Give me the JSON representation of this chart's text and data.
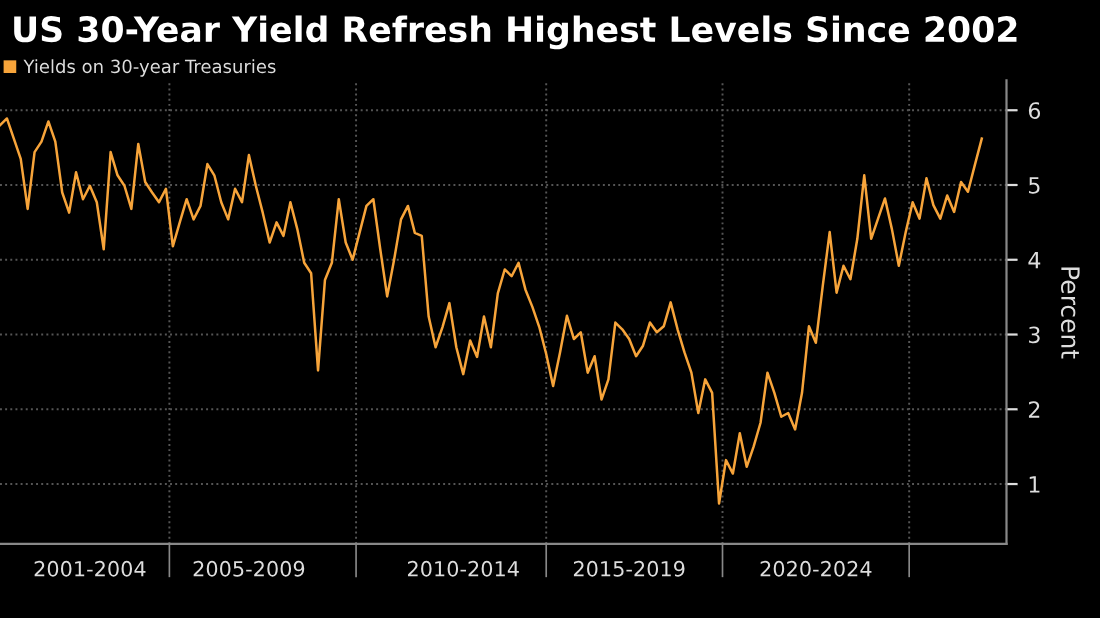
{
  "chart_data": {
    "type": "line",
    "title": "US 30-Year Yield Refresh Highest Levels Since 2002",
    "ylabel": "Percent",
    "categories": [
      null,
      null,
      null,
      null,
      null,
      null,
      null,
      null,
      null,
      null,
      null,
      null,
      null,
      "2001-2004",
      null,
      null,
      null,
      null,
      null,
      null,
      null,
      null,
      null,
      null,
      null,
      null,
      null,
      null,
      null,
      null,
      null,
      null,
      null,
      null,
      null,
      null,
      "2005-2009",
      null,
      null,
      null,
      null,
      null,
      null,
      null,
      null,
      null,
      null,
      null,
      null,
      null,
      null,
      null,
      null,
      null,
      null,
      null,
      null,
      null,
      null,
      null,
      null,
      null,
      null,
      null,
      null,
      null,
      null,
      "2010-2014",
      null,
      null,
      null,
      null,
      null,
      null,
      null,
      null,
      null,
      null,
      null,
      null,
      null,
      null,
      null,
      null,
      null,
      null,
      null,
      null,
      null,
      null,
      null,
      "2015-2019",
      null,
      null,
      null,
      null,
      null,
      null,
      null,
      null,
      null,
      null,
      null,
      null,
      null,
      null,
      null,
      null,
      null,
      null,
      null,
      null,
      null,
      null,
      null,
      null,
      null,
      null,
      "2020-2024",
      null,
      null,
      null,
      null,
      null,
      null,
      null,
      null,
      null,
      null,
      null,
      null,
      null,
      null,
      null,
      null,
      null,
      null,
      null,
      null,
      null,
      null,
      null,
      null
    ],
    "series": [
      {
        "name": "Yields on 30-year Treasuries",
        "color": "#f7a43a",
        "values": [
          5.8,
          5.89,
          5.62,
          5.35,
          4.68,
          5.44,
          5.58,
          5.85,
          5.58,
          4.9,
          4.63,
          5.17,
          4.81,
          4.99,
          4.77,
          4.14,
          5.44,
          5.13,
          4.99,
          4.68,
          5.55,
          5.04,
          4.9,
          4.77,
          4.95,
          4.18,
          4.5,
          4.81,
          4.54,
          4.72,
          5.28,
          5.13,
          4.77,
          4.54,
          4.95,
          4.77,
          5.4,
          4.99,
          4.63,
          4.23,
          4.5,
          4.32,
          4.77,
          4.41,
          3.96,
          3.82,
          2.52,
          3.73,
          3.96,
          4.81,
          4.23,
          4.0,
          4.36,
          4.72,
          4.81,
          4.14,
          3.51,
          4.0,
          4.54,
          4.72,
          4.36,
          4.32,
          3.24,
          2.83,
          3.1,
          3.42,
          2.83,
          2.47,
          2.92,
          2.7,
          3.24,
          2.83,
          3.55,
          3.87,
          3.78,
          3.96,
          3.6,
          3.37,
          3.1,
          2.74,
          2.31,
          2.76,
          3.25,
          2.94,
          3.03,
          2.49,
          2.71,
          2.13,
          2.4,
          3.16,
          3.07,
          2.94,
          2.71,
          2.85,
          3.16,
          3.03,
          3.11,
          3.43,
          3.07,
          2.76,
          2.49,
          1.95,
          2.4,
          2.22,
          0.74,
          1.32,
          1.14,
          1.68,
          1.23,
          1.5,
          1.82,
          2.49,
          2.22,
          1.9,
          1.95,
          1.73,
          2.22,
          3.11,
          2.89,
          3.65,
          4.37,
          3.56,
          3.92,
          3.74,
          4.28,
          5.13,
          4.28,
          4.55,
          4.82,
          4.41,
          3.92,
          4.37,
          4.77,
          4.55,
          5.09,
          4.73,
          4.55,
          4.86,
          4.64,
          5.04,
          4.91,
          5.27,
          5.62
        ]
      }
    ],
    "ylim": [
      0.2,
      6.4
    ],
    "yticks": [
      1,
      2,
      3,
      4,
      5,
      6
    ],
    "grid": true,
    "legend": "top left"
  }
}
